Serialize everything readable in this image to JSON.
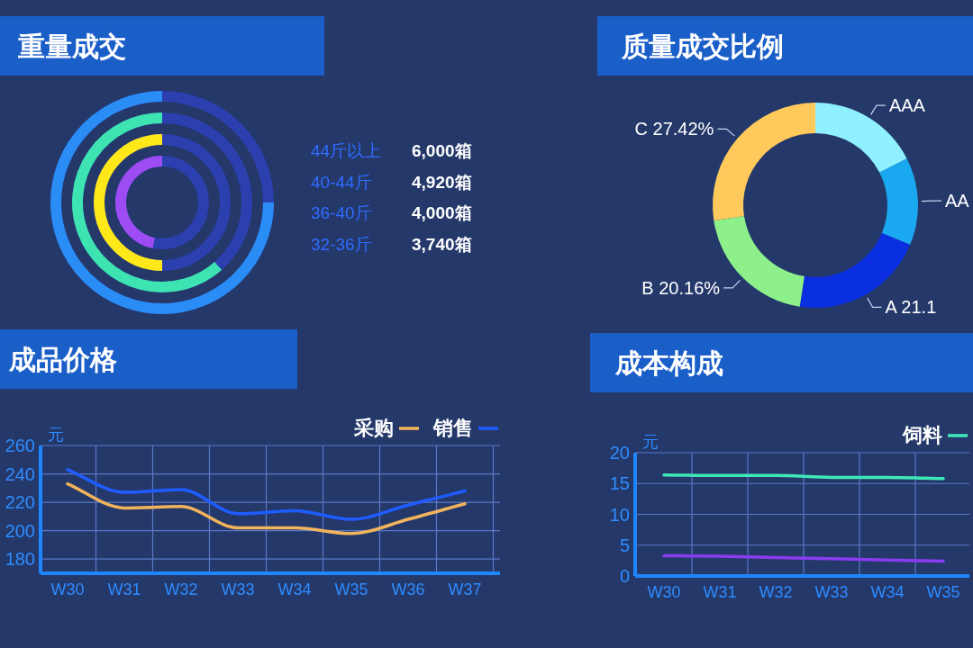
{
  "chart_data": [
    {
      "type": "other",
      "title": "重量成交",
      "categories": [
        "44斤以上",
        "40-44斤",
        "36-40斤",
        "32-36斤"
      ],
      "values": [
        6000,
        4920,
        4000,
        3740
      ],
      "colors": [
        "#2a8cf5",
        "#3de3b0",
        "#ffe81a",
        "#9c4cf2"
      ],
      "value_labels": [
        "6,000箱",
        "4,920箱",
        "4,000箱",
        "3,740箱"
      ]
    },
    {
      "type": "donut",
      "title": "质量成交比例",
      "categories": [
        "AAA",
        "AA",
        "A",
        "B",
        "C"
      ],
      "values": [
        17.5,
        13.82,
        21.1,
        20.16,
        27.42
      ],
      "colors": [
        "#8ff0ff",
        "#1aa8f0",
        "#0a2fe0",
        "#8ef08a",
        "#ffc95c"
      ],
      "value_labels": [
        null,
        null,
        "21.1",
        "20.16%",
        "27.42%"
      ]
    },
    {
      "type": "line",
      "title": "成品价格",
      "ylabel": "元",
      "categories": [
        "W30",
        "W31",
        "W32",
        "W33",
        "W34",
        "W35",
        "W36",
        "W37"
      ],
      "ylim": [
        170,
        260
      ],
      "yticks": [
        180,
        200,
        220,
        240,
        260
      ],
      "grid": true,
      "legend": "top right",
      "marker": "none",
      "line_style": "solid",
      "series": [
        {
          "name": "采购",
          "color": "#f2b45c",
          "values": [
            233,
            216,
            217,
            202,
            202,
            198,
            208,
            219
          ]
        },
        {
          "name": "销售",
          "color": "#1f5cff",
          "values": [
            243,
            227,
            229,
            212,
            214,
            208,
            218,
            228
          ]
        }
      ]
    },
    {
      "type": "line",
      "title": "成本构成",
      "ylabel": "元",
      "categories": [
        "W30",
        "W31",
        "W32",
        "W33",
        "W34",
        "W35"
      ],
      "ylim": [
        0,
        20
      ],
      "yticks": [
        0,
        5,
        10,
        15,
        20
      ],
      "grid": true,
      "legend": "top right",
      "marker": "none",
      "line_style": "solid",
      "series": [
        {
          "name": "饲料",
          "color": "#3ee8b8",
          "values": [
            16.4,
            16.3,
            16.3,
            16.0,
            16.0,
            15.8
          ]
        },
        {
          "color": "#8a3cf0",
          "values": [
            3.3,
            3.2,
            3.0,
            2.8,
            2.6,
            2.4
          ]
        }
      ]
    }
  ]
}
